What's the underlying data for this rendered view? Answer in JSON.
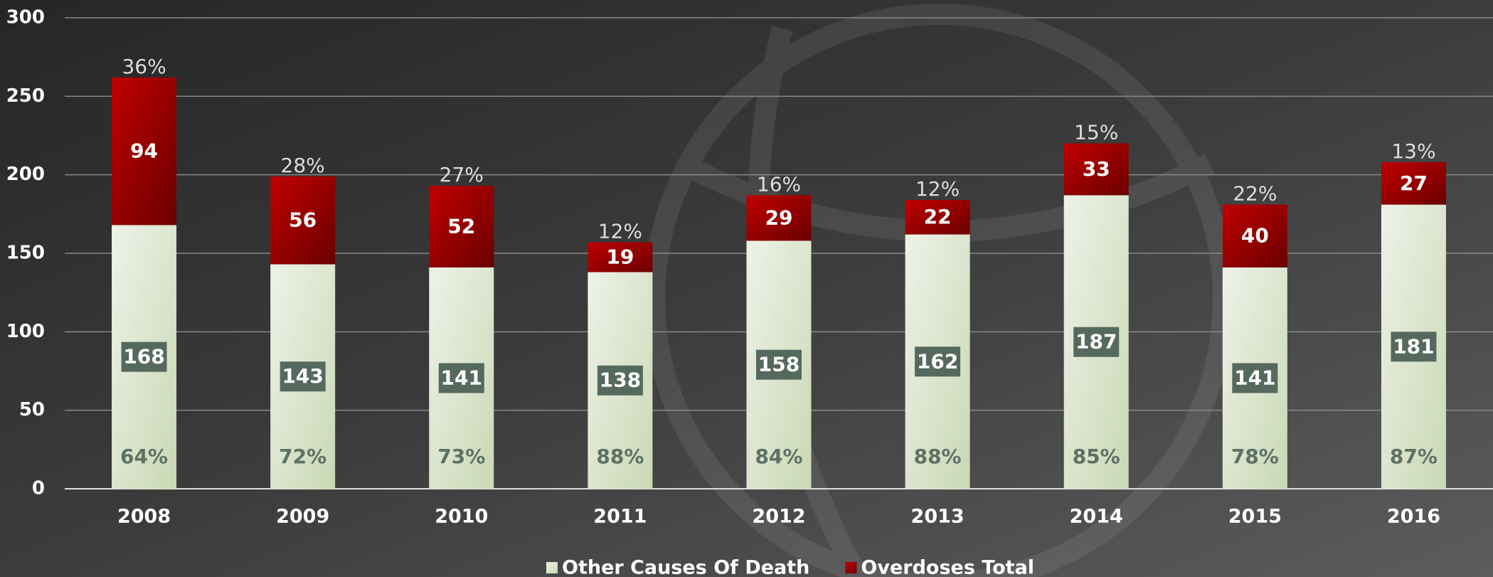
{
  "chart_data": {
    "type": "stacked_bar",
    "categories": [
      "2008",
      "2009",
      "2010",
      "2011",
      "2012",
      "2013",
      "2014",
      "2015",
      "2016"
    ],
    "series": [
      {
        "name": "Other Causes Of Death",
        "color": "#c9d8b4",
        "values": [
          168,
          143,
          141,
          138,
          158,
          162,
          187,
          141,
          181
        ],
        "share_labels": [
          "64%",
          "72%",
          "73%",
          "88%",
          "84%",
          "88%",
          "85%",
          "78%",
          "87%"
        ]
      },
      {
        "name": "Overdoses Total",
        "color": "#c00000",
        "values": [
          94,
          56,
          52,
          19,
          29,
          22,
          33,
          40,
          27
        ],
        "share_labels": [
          "36%",
          "28%",
          "27%",
          "12%",
          "16%",
          "12%",
          "15%",
          "22%",
          "13%"
        ]
      }
    ],
    "ylim": [
      0,
      300
    ],
    "yticks": [
      0,
      50,
      100,
      150,
      200,
      250,
      300
    ],
    "grid": true,
    "legend": "bottom"
  }
}
